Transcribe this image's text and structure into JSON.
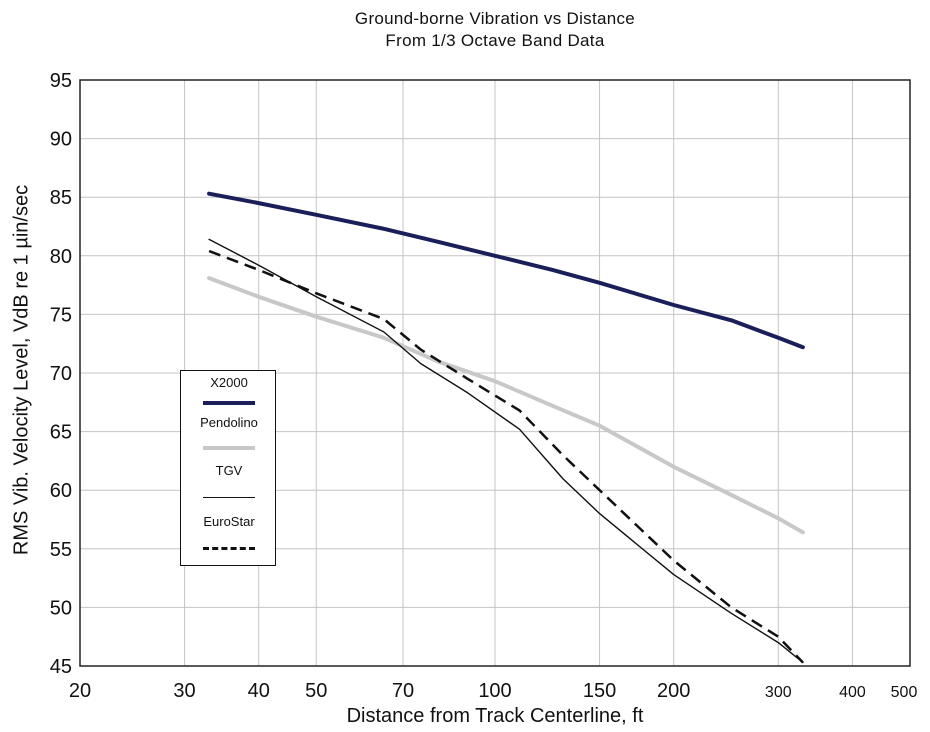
{
  "chart_data": {
    "type": "line",
    "title": "Ground-borne Vibration vs Distance",
    "subtitle": "From 1/3 Octave Band Data",
    "xlabel": "Distance from Track Centerline, ft",
    "ylabel": "RMS Vib. Velocity Level, VdB re 1 µin/sec",
    "x_scale": "log",
    "xlim": [
      20,
      500
    ],
    "ylim": [
      45,
      95
    ],
    "x_ticks": [
      20,
      30,
      40,
      50,
      70,
      100,
      150,
      200,
      300,
      400,
      500
    ],
    "x_tick_labels": [
      "20",
      "30",
      "40",
      "50",
      "70",
      "100",
      "150",
      "200",
      "300",
      "400",
      "500"
    ],
    "y_ticks": [
      45,
      50,
      55,
      60,
      65,
      70,
      75,
      80,
      85,
      90,
      95
    ],
    "y_tick_labels": [
      "45",
      "50",
      "55",
      "60",
      "65",
      "70",
      "75",
      "80",
      "85",
      "90",
      "95"
    ],
    "grid": true,
    "legend_position": "left",
    "series": [
      {
        "name": "X2000",
        "color": "#1a1f5a",
        "style": "thick",
        "x": [
          33,
          40,
          50,
          65,
          80,
          100,
          125,
          150,
          200,
          250,
          300,
          330
        ],
        "y": [
          85.3,
          84.5,
          83.5,
          82.3,
          81.2,
          80.0,
          78.8,
          77.7,
          75.8,
          74.5,
          73.0,
          72.2
        ]
      },
      {
        "name": "Pendolino",
        "color": "#c8c8c8",
        "style": "thick",
        "x": [
          33,
          40,
          50,
          65,
          80,
          100,
          125,
          150,
          200,
          250,
          300,
          330
        ],
        "y": [
          78.1,
          76.5,
          74.8,
          73.0,
          71.0,
          69.3,
          67.2,
          65.5,
          62.0,
          59.6,
          57.6,
          56.4
        ]
      },
      {
        "name": "TGV",
        "color": "#111111",
        "style": "thin",
        "x": [
          33,
          40,
          50,
          65,
          75,
          90,
          110,
          130,
          150,
          200,
          250,
          300,
          330
        ],
        "y": [
          81.4,
          79.2,
          76.5,
          73.5,
          70.8,
          68.3,
          65.2,
          61.0,
          58.0,
          52.8,
          49.5,
          47.0,
          45.3
        ]
      },
      {
        "name": "EuroStar",
        "color": "#111111",
        "style": "dashed",
        "x": [
          33,
          40,
          50,
          65,
          75,
          90,
          110,
          130,
          150,
          200,
          250,
          300,
          330
        ],
        "y": [
          80.4,
          78.8,
          76.8,
          74.6,
          72.0,
          69.5,
          66.8,
          63.0,
          60.0,
          54.0,
          50.0,
          47.5,
          45.3
        ]
      }
    ]
  }
}
